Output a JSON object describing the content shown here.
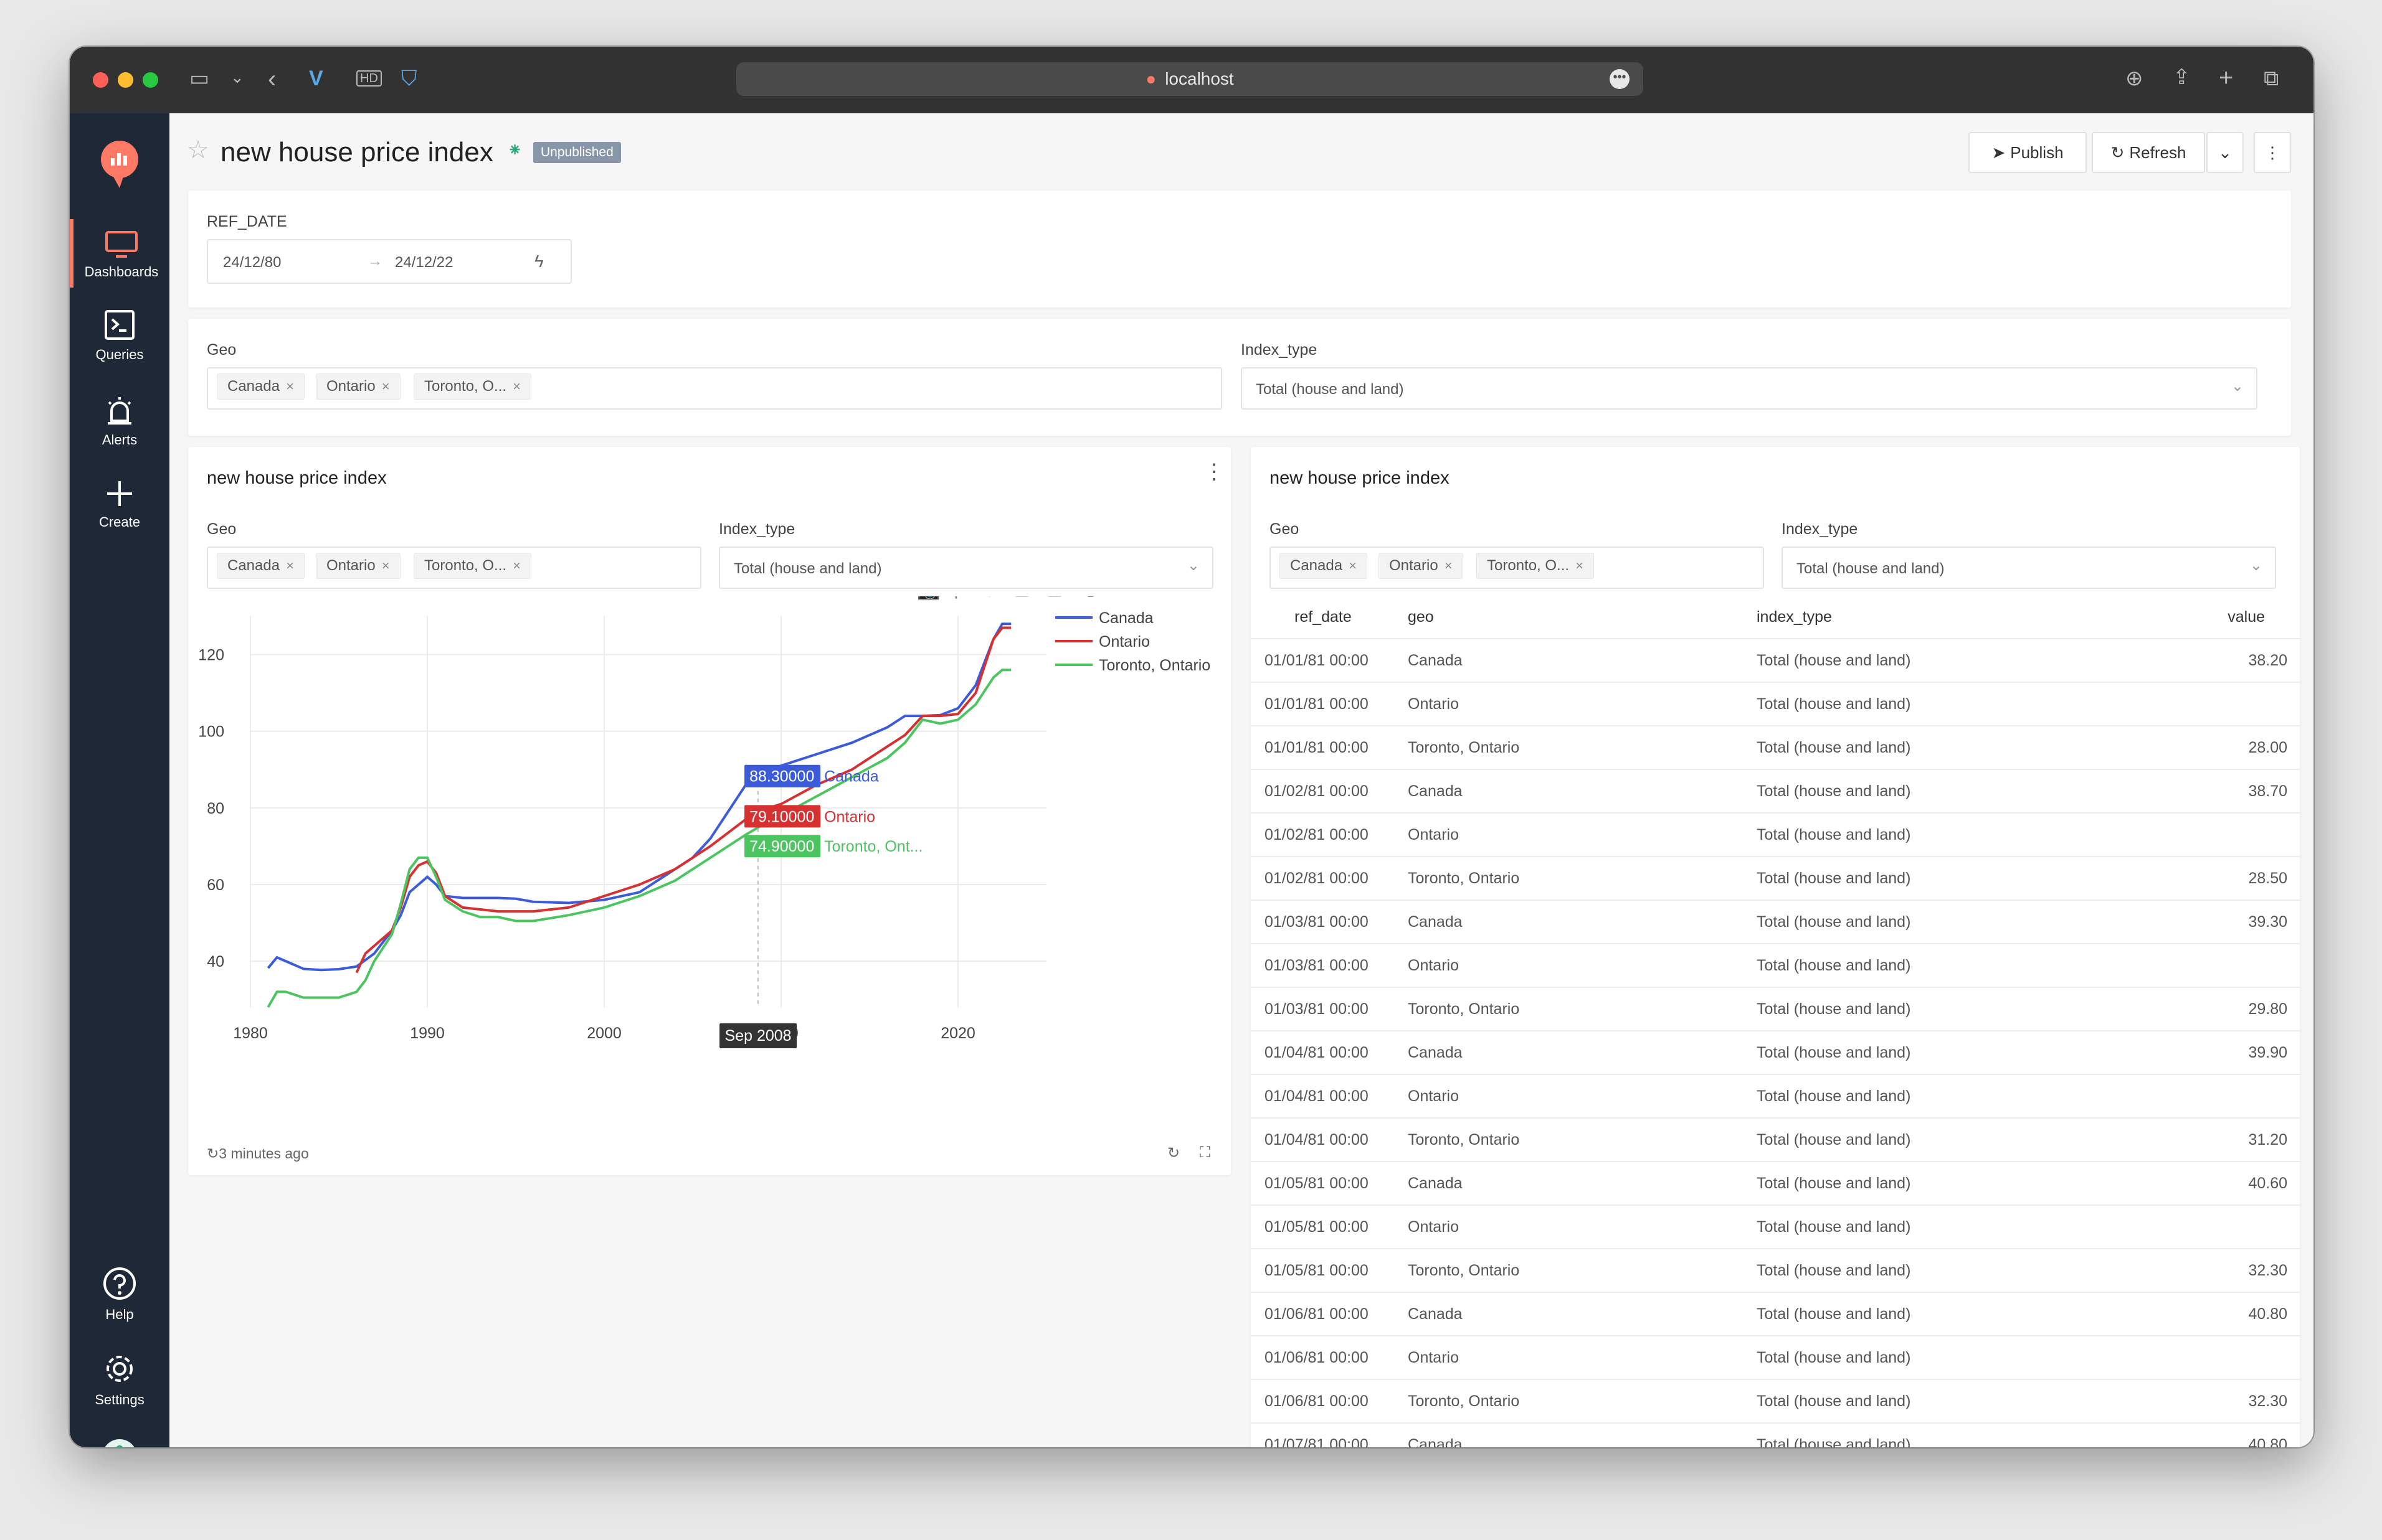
{
  "browser": {
    "url": "localhost"
  },
  "nav": {
    "dashboards": "Dashboards",
    "queries": "Queries",
    "alerts": "Alerts",
    "create": "Create",
    "help": "Help",
    "settings": "Settings"
  },
  "page": {
    "title": "new house price index",
    "status": "Unpublished",
    "publish": "Publish",
    "refresh": "Refresh"
  },
  "filters": {
    "ref_date_label": "REF_DATE",
    "date_from": "24/12/80",
    "date_to": "24/12/22",
    "geo_label": "Geo",
    "geo_tags": [
      "Canada",
      "Ontario",
      "Toronto, O..."
    ],
    "index_type_label": "Index_type",
    "index_type_value": "Total (house and land)"
  },
  "chart_widget": {
    "title": "new house price index",
    "updated": "3 minutes ago",
    "hover_date": "Sep 2008",
    "hover": [
      {
        "value": "88.30000",
        "label": "Canada",
        "color": "#3b5bdb"
      },
      {
        "value": "79.10000",
        "label": "Ontario",
        "color": "#d63031"
      },
      {
        "value": "74.90000",
        "label": "Toronto, Ont...",
        "color": "#4cc460"
      }
    ]
  },
  "table_widget": {
    "title": "new house price index",
    "columns": [
      "ref_date",
      "geo",
      "index_type",
      "value"
    ],
    "rows": [
      [
        "01/01/81 00:00",
        "Canada",
        "Total (house and land)",
        "38.20"
      ],
      [
        "01/01/81 00:00",
        "Ontario",
        "Total (house and land)",
        ""
      ],
      [
        "01/01/81 00:00",
        "Toronto, Ontario",
        "Total (house and land)",
        "28.00"
      ],
      [
        "01/02/81 00:00",
        "Canada",
        "Total (house and land)",
        "38.70"
      ],
      [
        "01/02/81 00:00",
        "Ontario",
        "Total (house and land)",
        ""
      ],
      [
        "01/02/81 00:00",
        "Toronto, Ontario",
        "Total (house and land)",
        "28.50"
      ],
      [
        "01/03/81 00:00",
        "Canada",
        "Total (house and land)",
        "39.30"
      ],
      [
        "01/03/81 00:00",
        "Ontario",
        "Total (house and land)",
        ""
      ],
      [
        "01/03/81 00:00",
        "Toronto, Ontario",
        "Total (house and land)",
        "29.80"
      ],
      [
        "01/04/81 00:00",
        "Canada",
        "Total (house and land)",
        "39.90"
      ],
      [
        "01/04/81 00:00",
        "Ontario",
        "Total (house and land)",
        ""
      ],
      [
        "01/04/81 00:00",
        "Toronto, Ontario",
        "Total (house and land)",
        "31.20"
      ],
      [
        "01/05/81 00:00",
        "Canada",
        "Total (house and land)",
        "40.60"
      ],
      [
        "01/05/81 00:00",
        "Ontario",
        "Total (house and land)",
        ""
      ],
      [
        "01/05/81 00:00",
        "Toronto, Ontario",
        "Total (house and land)",
        "32.30"
      ],
      [
        "01/06/81 00:00",
        "Canada",
        "Total (house and land)",
        "40.80"
      ],
      [
        "01/06/81 00:00",
        "Ontario",
        "Total (house and land)",
        ""
      ],
      [
        "01/06/81 00:00",
        "Toronto, Ontario",
        "Total (house and land)",
        "32.30"
      ],
      [
        "01/07/81 00:00",
        "Canada",
        "Total (house and land)",
        "40.80"
      ]
    ]
  },
  "chart_data": {
    "type": "line",
    "xlabel": "",
    "ylabel": "",
    "xlim": [
      1980,
      2025
    ],
    "ylim": [
      28,
      130
    ],
    "xticks": [
      1980,
      1990,
      2000,
      2010,
      2020
    ],
    "yticks": [
      40,
      60,
      80,
      100,
      120
    ],
    "legend_position": "top-right",
    "grid": true,
    "series": [
      {
        "name": "Canada",
        "color": "#3b5bdb",
        "x": [
          1981,
          1981.5,
          1982,
          1983,
          1984,
          1985,
          1986,
          1987,
          1988,
          1988.5,
          1989,
          1989.5,
          1990,
          1990.5,
          1991,
          1992,
          1993,
          1994,
          1995,
          1996,
          1998,
          2000,
          2002,
          2004,
          2005,
          2006,
          2007,
          2008,
          2008.7,
          2009,
          2010,
          2012,
          2014,
          2016,
          2017,
          2018,
          2019,
          2020,
          2021,
          2021.5,
          2022,
          2022.5,
          2023
        ],
        "y": [
          38.2,
          41,
          40,
          38,
          37.7,
          37.9,
          38.6,
          42,
          48,
          52,
          58,
          60,
          62,
          60,
          57,
          56.5,
          56.5,
          56.5,
          56.3,
          55.5,
          55.2,
          56,
          58,
          64,
          67,
          72,
          79,
          86,
          88.3,
          89,
          91,
          94,
          97,
          101,
          104,
          104,
          104.2,
          106,
          112,
          118,
          124,
          128,
          128
        ]
      },
      {
        "name": "Ontario",
        "color": "#d63031",
        "x": [
          1986,
          1986.5,
          1987,
          1988,
          1988.5,
          1989,
          1989.5,
          1990,
          1990.5,
          1991,
          1992,
          1994,
          1996,
          1998,
          2000,
          2002,
          2004,
          2006,
          2008,
          2008.7,
          2010,
          2012,
          2014,
          2016,
          2017,
          2018,
          2019,
          2020,
          2021,
          2021.5,
          2022,
          2022.5,
          2023
        ],
        "y": [
          37,
          42,
          44,
          48,
          54,
          62,
          65,
          66,
          63,
          57,
          54,
          53,
          53,
          54,
          57,
          60,
          64,
          70,
          77,
          79.1,
          81,
          86,
          90,
          96,
          99,
          104,
          104,
          104.5,
          110,
          117,
          124,
          127,
          127
        ]
      },
      {
        "name": "Toronto, Ontario",
        "color": "#4cc460",
        "x": [
          1981,
          1981.5,
          1982,
          1983,
          1984,
          1985,
          1986,
          1986.5,
          1987,
          1988,
          1988.5,
          1989,
          1989.5,
          1990,
          1990.5,
          1991,
          1992,
          1993,
          1994,
          1995,
          1996,
          1998,
          2000,
          2002,
          2004,
          2006,
          2008,
          2008.7,
          2010,
          2012,
          2014,
          2016,
          2017,
          2018,
          2019,
          2020,
          2021,
          2022,
          2022.5,
          2023
        ],
        "y": [
          28,
          32,
          32,
          30.5,
          30.5,
          30.5,
          32,
          35,
          40,
          47,
          55,
          64,
          67,
          67,
          62,
          56,
          53,
          51.5,
          51.5,
          50.5,
          50.5,
          52,
          54,
          57,
          61,
          67,
          73,
          74.9,
          78,
          83,
          88,
          93,
          97,
          103,
          102,
          103,
          107,
          114,
          116,
          116
        ]
      }
    ]
  }
}
